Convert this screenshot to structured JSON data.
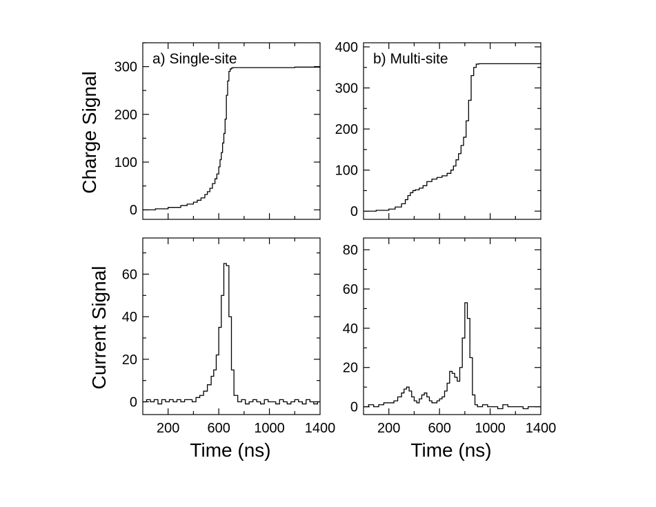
{
  "figure": {
    "ylabel_top": "Charge Signal",
    "ylabel_bottom": "Current Signal",
    "xlabel": "Time (ns)"
  },
  "chart_data": [
    {
      "type": "line",
      "step": true,
      "title": "a) Single-site",
      "xlim": [
        0,
        1400
      ],
      "ylim": [
        -20,
        350
      ],
      "xticks": [
        200,
        600,
        1000,
        1400
      ],
      "xminor_step": 200,
      "yticks": [
        0,
        100,
        200,
        300
      ],
      "yminor_step": 50,
      "series": [
        {
          "x": [
            0,
            100,
            200,
            300,
            350,
            400,
            430,
            460,
            490,
            510,
            530,
            550,
            570,
            585,
            600,
            610,
            620,
            630,
            640,
            650,
            660,
            670,
            680,
            690,
            700,
            710,
            720,
            750,
            800,
            900,
            1000,
            1100,
            1200,
            1300,
            1400
          ],
          "y": [
            0,
            2,
            5,
            9,
            12,
            16,
            20,
            25,
            32,
            38,
            45,
            55,
            65,
            75,
            90,
            105,
            120,
            140,
            160,
            190,
            240,
            270,
            290,
            295,
            297,
            298,
            298,
            298,
            298,
            298,
            298,
            298,
            299,
            299,
            300
          ]
        }
      ]
    },
    {
      "type": "line",
      "step": true,
      "title": "b) Multi-site",
      "xlim": [
        0,
        1400
      ],
      "ylim": [
        -20,
        410
      ],
      "xticks": [
        200,
        600,
        1000,
        1400
      ],
      "xminor_step": 200,
      "yticks": [
        0,
        100,
        200,
        300,
        400
      ],
      "yminor_step": 50,
      "series": [
        {
          "x": [
            0,
            100,
            200,
            250,
            300,
            330,
            350,
            370,
            390,
            410,
            440,
            470,
            500,
            540,
            580,
            620,
            660,
            690,
            710,
            730,
            750,
            770,
            790,
            810,
            830,
            850,
            870,
            890,
            910,
            1000,
            1100,
            1200,
            1300,
            1400
          ],
          "y": [
            0,
            2,
            5,
            10,
            18,
            28,
            38,
            45,
            50,
            52,
            56,
            62,
            72,
            78,
            82,
            86,
            92,
            100,
            110,
            125,
            140,
            160,
            180,
            220,
            270,
            330,
            350,
            358,
            359,
            359,
            359,
            359,
            359,
            360
          ]
        }
      ]
    },
    {
      "type": "line",
      "step": true,
      "title": "",
      "xlim": [
        0,
        1400
      ],
      "ylim": [
        -6,
        77
      ],
      "xticks": [
        200,
        600,
        1000,
        1400
      ],
      "xminor_step": 200,
      "yticks": [
        0,
        20,
        40,
        60
      ],
      "yminor_step": 10,
      "series": [
        {
          "x": [
            0,
            30,
            60,
            90,
            120,
            150,
            180,
            210,
            240,
            270,
            300,
            330,
            360,
            390,
            420,
            450,
            480,
            510,
            540,
            560,
            580,
            600,
            620,
            640,
            660,
            680,
            700,
            720,
            750,
            780,
            810,
            840,
            870,
            900,
            930,
            960,
            990,
            1020,
            1050,
            1080,
            1110,
            1140,
            1170,
            1200,
            1230,
            1260,
            1290,
            1320,
            1350,
            1380
          ],
          "y": [
            0,
            1,
            0,
            1,
            -1,
            1,
            0,
            1,
            0,
            1,
            0,
            1,
            1,
            0,
            2,
            3,
            5,
            8,
            12,
            15,
            22,
            35,
            50,
            65,
            64,
            40,
            15,
            3,
            0,
            1,
            -1,
            0,
            1,
            0,
            -1,
            1,
            0,
            0,
            -1,
            1,
            0,
            -1,
            0,
            1,
            0,
            -1,
            1,
            0,
            -1,
            0
          ]
        }
      ]
    },
    {
      "type": "line",
      "step": true,
      "title": "",
      "xlim": [
        0,
        1400
      ],
      "ylim": [
        -4,
        86
      ],
      "xticks": [
        200,
        600,
        1000,
        1400
      ],
      "xminor_step": 200,
      "yticks": [
        0,
        20,
        40,
        60,
        80
      ],
      "yminor_step": 10,
      "series": [
        {
          "x": [
            0,
            40,
            80,
            120,
            160,
            200,
            240,
            270,
            300,
            320,
            340,
            360,
            380,
            400,
            420,
            440,
            460,
            480,
            500,
            520,
            540,
            560,
            580,
            600,
            620,
            640,
            660,
            680,
            700,
            720,
            740,
            760,
            780,
            800,
            820,
            840,
            860,
            880,
            900,
            940,
            980,
            1020,
            1060,
            1100,
            1140,
            1180,
            1220,
            1260,
            1300,
            1340,
            1380
          ],
          "y": [
            0,
            1,
            0,
            1,
            2,
            2,
            3,
            5,
            7,
            9,
            10,
            8,
            5,
            3,
            2,
            4,
            6,
            7,
            5,
            3,
            2,
            2,
            3,
            4,
            5,
            8,
            12,
            18,
            17,
            15,
            13,
            20,
            35,
            53,
            45,
            25,
            6,
            1,
            0,
            1,
            0,
            0,
            -1,
            1,
            0,
            0,
            0,
            -1,
            0,
            0,
            0
          ]
        }
      ]
    }
  ]
}
